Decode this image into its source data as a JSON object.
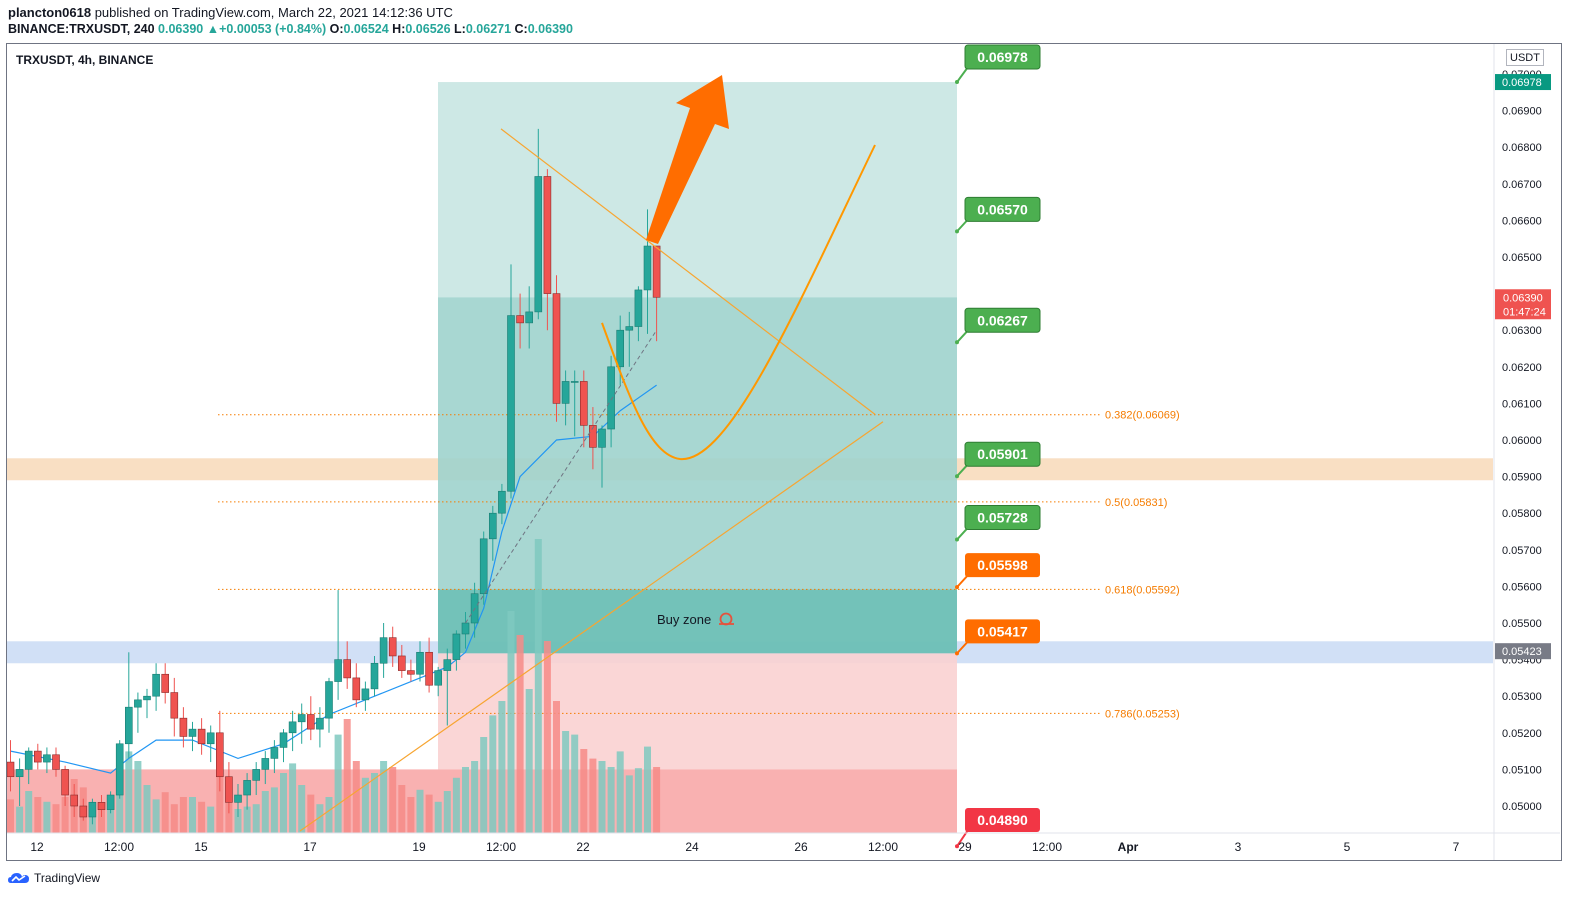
{
  "header": {
    "author": "plancton0618",
    "published_text": " published on TradingView.com, March 22, 2021 14:12:36 UTC",
    "symbol_line": "BINANCE:TRXUSDT, 240",
    "last": "0.06390",
    "change": "+0.00053 (+0.84%)",
    "o_label": "O:",
    "o": "0.06524",
    "h_label": "H:",
    "h": "0.06526",
    "l_label": "L:",
    "l": "0.06271",
    "c_label": "C:",
    "c": "0.06390"
  },
  "pane": {
    "symbol": "TRXUSDT, 4h, BINANCE",
    "unit": "USDT"
  },
  "footer": {
    "brand": "TradingView"
  },
  "colors": {
    "up": "#26a69a",
    "down": "#ef5350",
    "fib": "#f57c00",
    "callout_green": "#4caf50",
    "callout_orange": "#ff6d00",
    "callout_red": "#f23645",
    "ema": "#2196f3"
  },
  "chart_data": {
    "type": "candlestick",
    "x_tick_labels": [
      "12",
      "12:00",
      "15",
      "17",
      "19",
      "12:00",
      "22",
      "24",
      "26",
      "12:00",
      "29",
      "12:00",
      "Apr",
      "3",
      "5",
      "7"
    ],
    "y_tick_labels": [
      "0.07000",
      "0.06900",
      "0.06800",
      "0.06700",
      "0.06600",
      "0.06500",
      "0.06400",
      "0.06300",
      "0.06200",
      "0.06100",
      "0.06000",
      "0.05900",
      "0.05800",
      "0.05700",
      "0.05600",
      "0.05500",
      "0.05400",
      "0.05300",
      "0.05200",
      "0.05100",
      "0.05000"
    ],
    "ylim": [
      0.0497,
      0.0719
    ],
    "last_price": {
      "value": "0.06390",
      "countdown": "01:47:24"
    },
    "axis_tags": [
      {
        "value": "0.06978",
        "color": "#089981"
      },
      {
        "value": "0.05423",
        "color": "#787b86"
      }
    ],
    "price_callouts": [
      {
        "value": "0.06978",
        "color": "#4caf50"
      },
      {
        "value": "0.06570",
        "color": "#4caf50"
      },
      {
        "value": "0.06267",
        "color": "#4caf50"
      },
      {
        "value": "0.05901",
        "color": "#4caf50"
      },
      {
        "value": "0.05728",
        "color": "#4caf50"
      },
      {
        "value": "0.05598",
        "color": "#ff6d00"
      },
      {
        "value": "0.05417",
        "color": "#ff6d00"
      },
      {
        "value": "0.04890",
        "color": "#f23645"
      }
    ],
    "fib_levels": [
      {
        "label": "0.382(0.06069)",
        "price": 0.06069
      },
      {
        "label": "0.5(0.05831)",
        "price": 0.05831
      },
      {
        "label": "0.618(0.05592)",
        "price": 0.05592
      },
      {
        "label": "0.786(0.05253)",
        "price": 0.05253
      }
    ],
    "zones": [
      {
        "name": "resistance",
        "from": 0.0589,
        "to": 0.0595,
        "color": "#f8d9b8"
      },
      {
        "name": "support",
        "from": 0.0539,
        "to": 0.0545,
        "color": "#c9dbf5"
      }
    ],
    "annotation": "Buy zone",
    "annotation_icon": "snail-icon",
    "candles": [
      {
        "o": 0.0512,
        "h": 0.0518,
        "l": 0.0504,
        "c": 0.0508
      },
      {
        "o": 0.0508,
        "h": 0.0513,
        "l": 0.05,
        "c": 0.051
      },
      {
        "o": 0.051,
        "h": 0.0516,
        "l": 0.0506,
        "c": 0.0515
      },
      {
        "o": 0.0515,
        "h": 0.0517,
        "l": 0.051,
        "c": 0.0512
      },
      {
        "o": 0.0512,
        "h": 0.0516,
        "l": 0.0509,
        "c": 0.0514
      },
      {
        "o": 0.0514,
        "h": 0.0516,
        "l": 0.0508,
        "c": 0.051
      },
      {
        "o": 0.051,
        "h": 0.0511,
        "l": 0.05,
        "c": 0.0503
      },
      {
        "o": 0.0503,
        "h": 0.0506,
        "l": 0.0497,
        "c": 0.05
      },
      {
        "o": 0.05,
        "h": 0.0502,
        "l": 0.0496,
        "c": 0.0497
      },
      {
        "o": 0.0497,
        "h": 0.0502,
        "l": 0.0495,
        "c": 0.0501
      },
      {
        "o": 0.0501,
        "h": 0.0503,
        "l": 0.0497,
        "c": 0.0499
      },
      {
        "o": 0.0499,
        "h": 0.0504,
        "l": 0.0498,
        "c": 0.0503
      },
      {
        "o": 0.0503,
        "h": 0.0518,
        "l": 0.0502,
        "c": 0.0517
      },
      {
        "o": 0.0517,
        "h": 0.0542,
        "l": 0.0513,
        "c": 0.0527
      },
      {
        "o": 0.0527,
        "h": 0.0531,
        "l": 0.052,
        "c": 0.0529
      },
      {
        "o": 0.0529,
        "h": 0.0532,
        "l": 0.0524,
        "c": 0.053
      },
      {
        "o": 0.053,
        "h": 0.0539,
        "l": 0.0526,
        "c": 0.0536
      },
      {
        "o": 0.0536,
        "h": 0.0539,
        "l": 0.0528,
        "c": 0.0531
      },
      {
        "o": 0.0531,
        "h": 0.0535,
        "l": 0.0519,
        "c": 0.0524
      },
      {
        "o": 0.0524,
        "h": 0.0527,
        "l": 0.0516,
        "c": 0.0519
      },
      {
        "o": 0.0519,
        "h": 0.0523,
        "l": 0.0515,
        "c": 0.0521
      },
      {
        "o": 0.0521,
        "h": 0.0524,
        "l": 0.0514,
        "c": 0.0517
      },
      {
        "o": 0.0517,
        "h": 0.0522,
        "l": 0.0512,
        "c": 0.052
      },
      {
        "o": 0.052,
        "h": 0.0526,
        "l": 0.0504,
        "c": 0.0508
      },
      {
        "o": 0.0508,
        "h": 0.0512,
        "l": 0.0498,
        "c": 0.0501
      },
      {
        "o": 0.0501,
        "h": 0.0506,
        "l": 0.0497,
        "c": 0.0503
      },
      {
        "o": 0.0503,
        "h": 0.0509,
        "l": 0.0499,
        "c": 0.0507
      },
      {
        "o": 0.0507,
        "h": 0.0512,
        "l": 0.0503,
        "c": 0.051
      },
      {
        "o": 0.051,
        "h": 0.0515,
        "l": 0.0506,
        "c": 0.0513
      },
      {
        "o": 0.0513,
        "h": 0.0518,
        "l": 0.0509,
        "c": 0.0516
      },
      {
        "o": 0.0516,
        "h": 0.0521,
        "l": 0.0512,
        "c": 0.052
      },
      {
        "o": 0.052,
        "h": 0.0526,
        "l": 0.0515,
        "c": 0.0523
      },
      {
        "o": 0.0523,
        "h": 0.0528,
        "l": 0.0517,
        "c": 0.0525
      },
      {
        "o": 0.0525,
        "h": 0.053,
        "l": 0.0518,
        "c": 0.0521
      },
      {
        "o": 0.0521,
        "h": 0.0527,
        "l": 0.0516,
        "c": 0.0524
      },
      {
        "o": 0.0524,
        "h": 0.0535,
        "l": 0.052,
        "c": 0.0534
      },
      {
        "o": 0.0534,
        "h": 0.0559,
        "l": 0.0529,
        "c": 0.054
      },
      {
        "o": 0.054,
        "h": 0.0545,
        "l": 0.0532,
        "c": 0.0535
      },
      {
        "o": 0.0535,
        "h": 0.0539,
        "l": 0.0527,
        "c": 0.0529
      },
      {
        "o": 0.0529,
        "h": 0.0534,
        "l": 0.0526,
        "c": 0.0532
      },
      {
        "o": 0.0532,
        "h": 0.0541,
        "l": 0.053,
        "c": 0.0539
      },
      {
        "o": 0.0539,
        "h": 0.055,
        "l": 0.0535,
        "c": 0.0546
      },
      {
        "o": 0.0546,
        "h": 0.0549,
        "l": 0.0538,
        "c": 0.0541
      },
      {
        "o": 0.0541,
        "h": 0.0544,
        "l": 0.0535,
        "c": 0.0537
      },
      {
        "o": 0.0537,
        "h": 0.054,
        "l": 0.0534,
        "c": 0.0536
      },
      {
        "o": 0.0536,
        "h": 0.0545,
        "l": 0.0534,
        "c": 0.0542
      },
      {
        "o": 0.0542,
        "h": 0.0546,
        "l": 0.0531,
        "c": 0.0533
      },
      {
        "o": 0.0533,
        "h": 0.0538,
        "l": 0.053,
        "c": 0.0537
      },
      {
        "o": 0.0537,
        "h": 0.0543,
        "l": 0.0522,
        "c": 0.054
      },
      {
        "o": 0.054,
        "h": 0.0548,
        "l": 0.0537,
        "c": 0.0547
      },
      {
        "o": 0.0547,
        "h": 0.0553,
        "l": 0.0543,
        "c": 0.055
      },
      {
        "o": 0.055,
        "h": 0.0561,
        "l": 0.0546,
        "c": 0.0558
      },
      {
        "o": 0.0558,
        "h": 0.0575,
        "l": 0.0555,
        "c": 0.0573
      },
      {
        "o": 0.0573,
        "h": 0.0582,
        "l": 0.0567,
        "c": 0.058
      },
      {
        "o": 0.058,
        "h": 0.0588,
        "l": 0.0577,
        "c": 0.0586
      },
      {
        "o": 0.0586,
        "h": 0.0648,
        "l": 0.0584,
        "c": 0.0634
      },
      {
        "o": 0.0634,
        "h": 0.064,
        "l": 0.0625,
        "c": 0.0632
      },
      {
        "o": 0.0632,
        "h": 0.0642,
        "l": 0.0625,
        "c": 0.0635
      },
      {
        "o": 0.0635,
        "h": 0.0685,
        "l": 0.0633,
        "c": 0.0672
      },
      {
        "o": 0.0672,
        "h": 0.0674,
        "l": 0.063,
        "c": 0.064
      },
      {
        "o": 0.064,
        "h": 0.0645,
        "l": 0.0605,
        "c": 0.061
      },
      {
        "o": 0.061,
        "h": 0.0619,
        "l": 0.0604,
        "c": 0.0616
      },
      {
        "o": 0.0616,
        "h": 0.0619,
        "l": 0.0601,
        "c": 0.0616
      },
      {
        "o": 0.0616,
        "h": 0.0619,
        "l": 0.0598,
        "c": 0.0604
      },
      {
        "o": 0.0604,
        "h": 0.0609,
        "l": 0.0592,
        "c": 0.0598
      },
      {
        "o": 0.0598,
        "h": 0.0604,
        "l": 0.0587,
        "c": 0.0603
      },
      {
        "o": 0.0603,
        "h": 0.0623,
        "l": 0.0598,
        "c": 0.062
      },
      {
        "o": 0.062,
        "h": 0.0634,
        "l": 0.0615,
        "c": 0.063
      },
      {
        "o": 0.063,
        "h": 0.0635,
        "l": 0.062,
        "c": 0.0631
      },
      {
        "o": 0.0631,
        "h": 0.0642,
        "l": 0.0627,
        "c": 0.0641
      },
      {
        "o": 0.0641,
        "h": 0.0663,
        "l": 0.0629,
        "c": 0.0653
      },
      {
        "o": 0.0653,
        "h": 0.0653,
        "l": 0.0627,
        "c": 0.0639
      }
    ],
    "volumes": [
      28,
      22,
      35,
      30,
      26,
      24,
      30,
      45,
      38,
      26,
      24,
      30,
      55,
      68,
      60,
      40,
      28,
      34,
      24,
      30,
      30,
      26,
      22,
      62,
      30,
      20,
      22,
      24,
      35,
      38,
      50,
      58,
      40,
      32,
      24,
      30,
      82,
      95,
      60,
      46,
      50,
      60,
      55,
      40,
      30,
      36,
      32,
      26,
      35,
      46,
      55,
      60,
      80,
      98,
      110,
      185,
      165,
      120,
      245,
      160,
      110,
      85,
      82,
      70,
      62,
      60,
      55,
      68,
      48,
      54,
      72,
      55
    ],
    "ema_points": [
      [
        0,
        0.0515
      ],
      [
        6,
        0.0512
      ],
      [
        11,
        0.0509
      ],
      [
        13,
        0.0513
      ],
      [
        16,
        0.0518
      ],
      [
        20,
        0.0518
      ],
      [
        25,
        0.0513
      ],
      [
        30,
        0.0517
      ],
      [
        35,
        0.0525
      ],
      [
        40,
        0.053
      ],
      [
        45,
        0.0535
      ],
      [
        48,
        0.0538
      ],
      [
        50,
        0.0542
      ],
      [
        52,
        0.0554
      ],
      [
        54,
        0.0575
      ],
      [
        56,
        0.059
      ],
      [
        60,
        0.06
      ],
      [
        64,
        0.0601
      ],
      [
        67,
        0.0608
      ],
      [
        71,
        0.0615
      ]
    ]
  }
}
